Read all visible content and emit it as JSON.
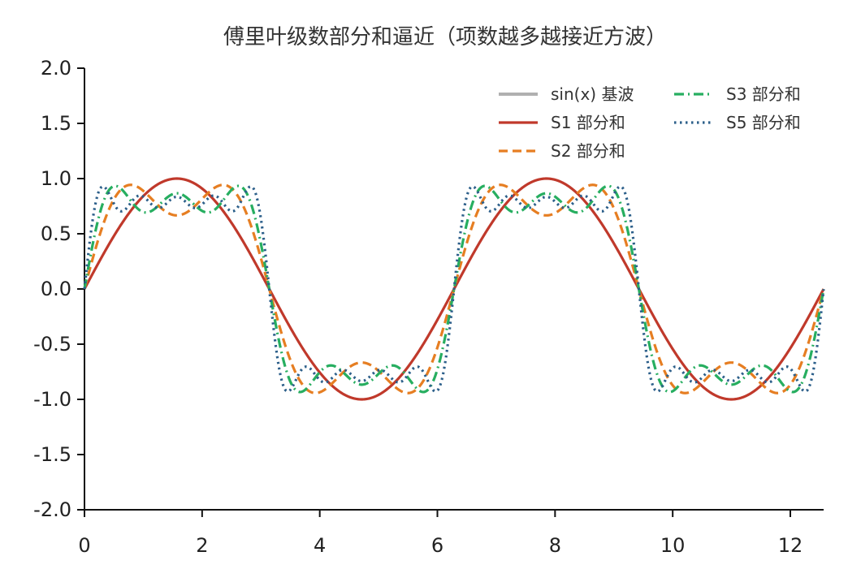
{
  "chart_data": {
    "type": "line",
    "title": "傅里叶级数部分和逼近（项数越多越接近方波）",
    "xlabel": "",
    "ylabel": "",
    "xlim": [
      0,
      12.566
    ],
    "ylim": [
      -2.0,
      2.0
    ],
    "xticks": [
      0,
      2,
      4,
      6,
      8,
      10,
      12
    ],
    "xtick_labels": [
      "0",
      "2",
      "4",
      "6",
      "8",
      "10",
      "12"
    ],
    "yticks": [
      2.0,
      1.5,
      1.0,
      0.5,
      0.0,
      -0.5,
      -1.0,
      -1.5,
      -2.0
    ],
    "ytick_labels": [
      "2.0",
      "1.5",
      "1.0",
      "0.5",
      "0.0",
      "-0.5",
      "-1.0",
      "-1.5",
      "-2.0"
    ],
    "grid": false,
    "legend_position": "top-right",
    "series": [
      {
        "name": "sin(x) 基波",
        "terms": 1,
        "visible_line": false,
        "color": "#b0b0b0",
        "dash": "solid"
      },
      {
        "name": "S1 部分和",
        "terms": 1,
        "visible_line": true,
        "color": "#c0392b",
        "dash": "solid"
      },
      {
        "name": "S2 部分和",
        "terms": 2,
        "visible_line": true,
        "color": "#e67e22",
        "dash": "dashed"
      },
      {
        "name": "S3 部分和",
        "terms": 3,
        "visible_line": true,
        "color": "#27ae60",
        "dash": "dashdot"
      },
      {
        "name": "S5 部分和",
        "terms": 5,
        "visible_line": true,
        "color": "#2c5f8a",
        "dash": "dotted"
      }
    ]
  }
}
